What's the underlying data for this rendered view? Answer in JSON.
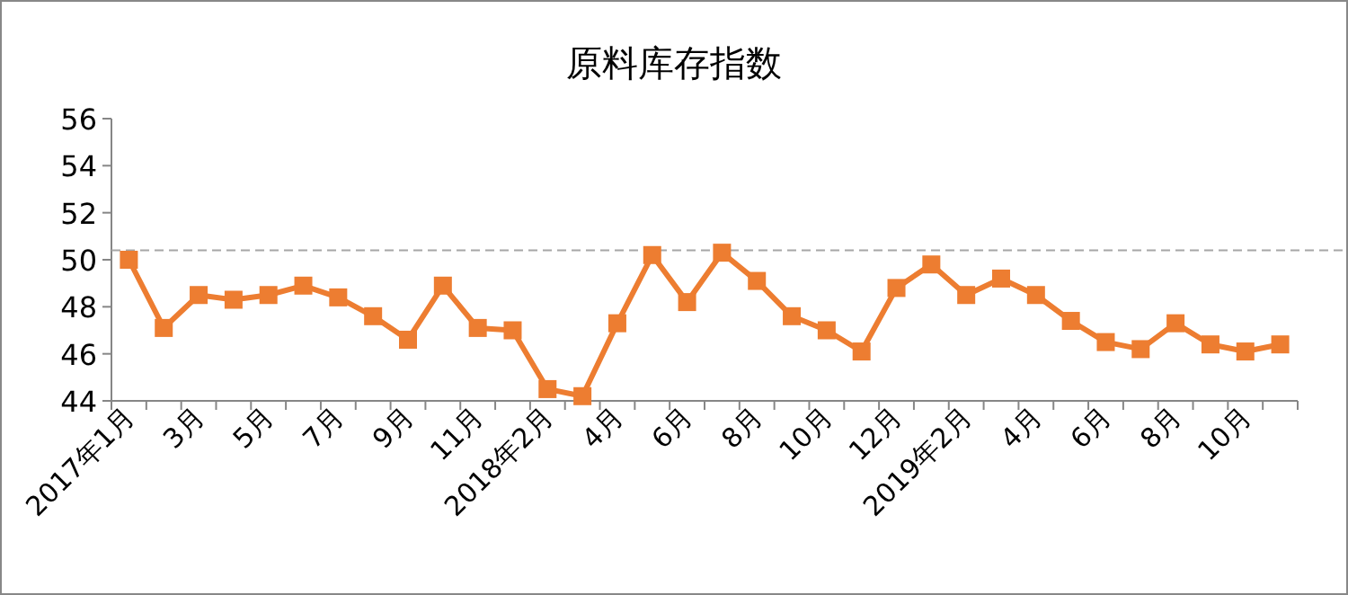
{
  "chart_data": {
    "type": "line",
    "title": "原料库存指数",
    "categories": [
      "2017年1月",
      null,
      "3月",
      null,
      "5月",
      null,
      "7月",
      null,
      "9月",
      null,
      "11月",
      null,
      "2018年2月",
      null,
      "4月",
      null,
      "6月",
      null,
      "8月",
      null,
      "10月",
      null,
      "12月",
      null,
      "2019年2月",
      null,
      "4月",
      null,
      "6月",
      null,
      "8月",
      null,
      "10月",
      null
    ],
    "series": [
      {
        "color": "#ed7d31",
        "values": [
          50.0,
          47.1,
          48.5,
          48.3,
          48.5,
          48.9,
          48.4,
          47.6,
          46.6,
          48.9,
          47.1,
          47.0,
          44.5,
          44.2,
          47.3,
          50.2,
          48.2,
          50.3,
          49.1,
          47.6,
          47.0,
          46.1,
          48.8,
          49.8,
          48.5,
          49.2,
          48.5,
          47.4,
          46.5,
          46.2,
          47.3,
          46.4,
          46.1,
          46.4
        ]
      }
    ],
    "ylim": [
      44,
      56
    ],
    "yticks": [
      44,
      46,
      48,
      50,
      52,
      54,
      56
    ],
    "marker": "square",
    "line_style": "solid",
    "ref_lines": [
      {
        "axis": "y",
        "value": 50.4,
        "color": "#a6a6a6",
        "line_style": "dashed"
      }
    ]
  }
}
